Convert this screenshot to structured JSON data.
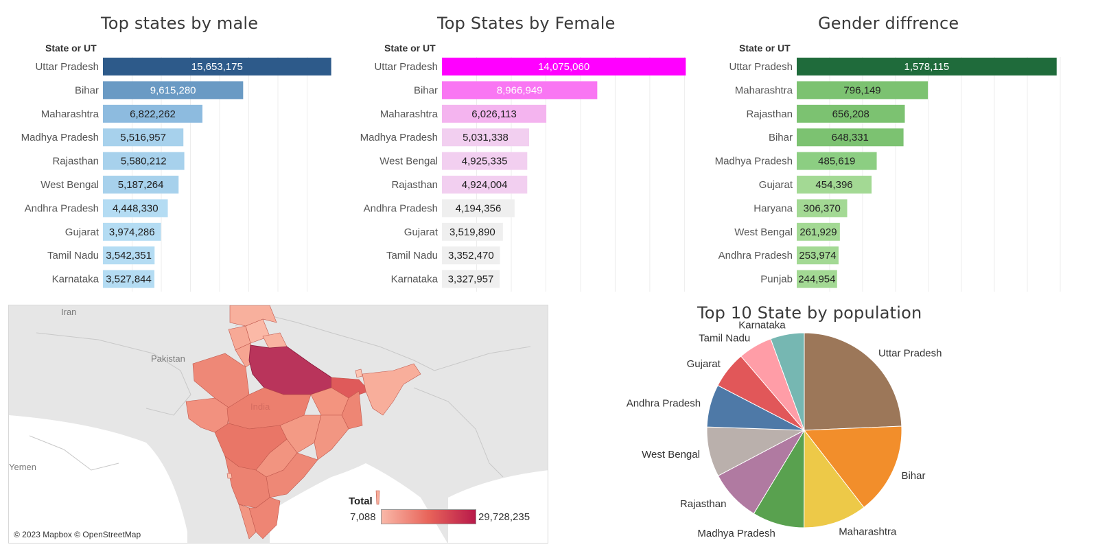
{
  "colors": {
    "male_scale": [
      "#2d5a8a",
      "#6a9ac4",
      "#8dbbdf",
      "#a7d1ec",
      "#b4dcf3"
    ],
    "female_scale": [
      "#ff00ff",
      "#f976f3",
      "#f4b4ef",
      "#f2cff0",
      "#efefef"
    ],
    "diff_scale": [
      "#1f6b3b",
      "#66b263",
      "#7cc271",
      "#8cce82",
      "#a3d994"
    ],
    "pie": [
      "#9c7759",
      "#f28e2b",
      "#edc948",
      "#59a14f",
      "#b07aa1",
      "#bab0ac",
      "#4e79a7",
      "#e15759",
      "#ff9da7",
      "#76b7b2"
    ]
  },
  "chart_data": [
    {
      "type": "bar",
      "title": "Top states by male",
      "ylabel": "State or UT",
      "categories": [
        "Uttar Pradesh",
        "Bihar",
        "Maharashtra",
        "Madhya Pradesh",
        "Rajasthan",
        "West Bengal",
        "Andhra Pradesh",
        "Gujarat",
        "Tamil Nadu",
        "Karnataka"
      ],
      "values": [
        15653175,
        9615280,
        6822262,
        5516957,
        5580212,
        5187264,
        4448330,
        3974286,
        3542351,
        3527844
      ],
      "labels": [
        "15,653,175",
        "9,615,280",
        "6,822,262",
        "5,516,957",
        "5,580,212",
        "5,187,264",
        "4,448,330",
        "3,974,286",
        "3,542,351",
        "3,527,844"
      ],
      "xlim": [
        0,
        16000000
      ],
      "grid": true
    },
    {
      "type": "bar",
      "title": "Top States by Female",
      "ylabel": "State or UT",
      "categories": [
        "Uttar Pradesh",
        "Bihar",
        "Maharashtra",
        "Madhya Pradesh",
        "West Bengal",
        "Rajasthan",
        "Andhra Pradesh",
        "Gujarat",
        "Tamil Nadu",
        "Karnataka"
      ],
      "values": [
        14075060,
        8966949,
        6026113,
        5031338,
        4925335,
        4924004,
        4194356,
        3519890,
        3352470,
        3327957
      ],
      "labels": [
        "14,075,060",
        "8,966,949",
        "6,026,113",
        "5,031,338",
        "4,925,335",
        "4,924,004",
        "4,194,356",
        "3,519,890",
        "3,352,470",
        "3,327,957"
      ],
      "xlim": [
        0,
        14500000
      ],
      "grid": true
    },
    {
      "type": "bar",
      "title": "Gender diffrence",
      "ylabel": "State or UT",
      "categories": [
        "Uttar Pradesh",
        "Maharashtra",
        "Rajasthan",
        "Bihar",
        "Madhya Pradesh",
        "Gujarat",
        "Haryana",
        "West Bengal",
        "Andhra Pradesh",
        "Punjab"
      ],
      "values": [
        1578115,
        796149,
        656208,
        648331,
        485619,
        454396,
        306370,
        261929,
        253974,
        244954
      ],
      "labels": [
        "1,578,115",
        "796,149",
        "656,208",
        "648,331",
        "485,619",
        "454,396",
        "306,370",
        "261,929",
        "253,974",
        "244,954"
      ],
      "xlim": [
        0,
        1650000
      ],
      "grid": true
    },
    {
      "type": "pie",
      "title": "Top 10 State by population",
      "categories": [
        "Uttar Pradesh",
        "Bihar",
        "Maharashtra",
        "Madhya Pradesh",
        "Rajasthan",
        "West Bengal",
        "Andhra Pradesh",
        "Gujarat",
        "Tamil Nadu",
        "Karnataka"
      ],
      "values": [
        29728235,
        18582229,
        12848375,
        10548295,
        10504216,
        10112599,
        8642686,
        7494176,
        6894821,
        6855801
      ]
    }
  ],
  "map": {
    "labels": {
      "iran": "Iran",
      "pakistan": "Pakistan",
      "india": "India",
      "yemen": "Yemen"
    },
    "attribution": "© 2023 Mapbox © OpenStreetMap",
    "legend": {
      "title": "Total",
      "min": "7,088",
      "max": "29,728,235"
    }
  }
}
